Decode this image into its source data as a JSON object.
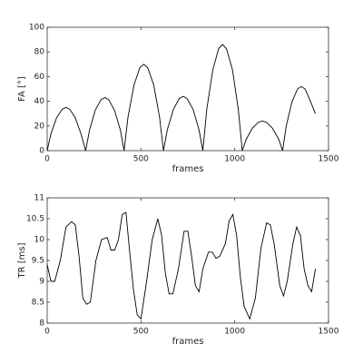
{
  "chart_data": [
    {
      "type": "line",
      "ylabel": "FA [°]",
      "xlabel": "frames",
      "color": "#000000",
      "x": [
        0,
        20,
        50,
        80,
        100,
        120,
        150,
        180,
        205,
        226,
        256,
        287,
        308,
        328,
        359,
        390,
        410,
        431,
        463,
        494,
        515,
        536,
        568,
        599,
        620,
        641,
        673,
        704,
        725,
        746,
        778,
        809,
        830,
        851,
        883,
        914,
        935,
        956,
        988,
        1019,
        1040,
        1062,
        1094,
        1126,
        1148,
        1169,
        1201,
        1234,
        1255,
        1275,
        1305,
        1335,
        1355,
        1375,
        1405,
        1430
      ],
      "values": [
        0,
        13.7,
        26.6,
        33.6,
        35,
        33.6,
        26.6,
        13.7,
        0,
        16.8,
        32.7,
        41.3,
        43,
        41.3,
        32.7,
        16.8,
        0,
        27.3,
        53.2,
        67.2,
        70,
        67.2,
        53.2,
        27.3,
        0,
        17.2,
        33.4,
        42.2,
        44,
        42.2,
        33.4,
        17.2,
        0,
        33.5,
        65.4,
        82.6,
        86,
        82.6,
        65.4,
        33.5,
        0,
        9.4,
        18.2,
        23,
        24,
        23,
        18.2,
        9.4,
        0,
        20.3,
        39.5,
        50,
        52,
        50,
        39.5,
        30
      ],
      "xlim": [
        0,
        1500
      ],
      "xticks": [
        0,
        500,
        1000,
        1500
      ],
      "ylim": [
        0,
        100
      ],
      "yticks": [
        0,
        20,
        40,
        60,
        80,
        100
      ]
    },
    {
      "type": "line",
      "ylabel": "TR [ms]",
      "xlabel": "frames",
      "color": "#000000",
      "x": [
        0,
        20,
        40,
        70,
        100,
        130,
        150,
        170,
        190,
        210,
        230,
        260,
        290,
        320,
        340,
        360,
        380,
        400,
        420,
        440,
        460,
        480,
        500,
        530,
        560,
        590,
        610,
        630,
        650,
        670,
        700,
        730,
        750,
        770,
        790,
        810,
        830,
        860,
        880,
        900,
        920,
        950,
        970,
        990,
        1010,
        1030,
        1050,
        1080,
        1110,
        1140,
        1170,
        1190,
        1210,
        1240,
        1260,
        1280,
        1310,
        1330,
        1350,
        1370,
        1390,
        1410,
        1430
      ],
      "values": [
        9.4,
        9.0,
        9.0,
        9.5,
        10.3,
        10.43,
        10.35,
        9.6,
        8.6,
        8.45,
        8.5,
        9.5,
        10.0,
        10.05,
        9.75,
        9.75,
        10.0,
        10.6,
        10.65,
        9.7,
        8.8,
        8.2,
        8.1,
        9.0,
        10.0,
        10.5,
        10.1,
        9.2,
        8.7,
        8.7,
        9.3,
        10.2,
        10.2,
        9.6,
        8.9,
        8.75,
        9.3,
        9.7,
        9.7,
        9.55,
        9.6,
        9.9,
        10.45,
        10.6,
        10.1,
        9.1,
        8.4,
        8.1,
        8.6,
        9.8,
        10.4,
        10.35,
        9.9,
        8.9,
        8.65,
        9.0,
        9.9,
        10.3,
        10.1,
        9.3,
        8.9,
        8.75,
        9.3
      ],
      "xlim": [
        0,
        1500
      ],
      "xticks": [
        0,
        500,
        1000,
        1500
      ],
      "ylim": [
        8,
        11
      ],
      "yticks": [
        8,
        8.5,
        9,
        9.5,
        10,
        10.5,
        11
      ]
    }
  ]
}
